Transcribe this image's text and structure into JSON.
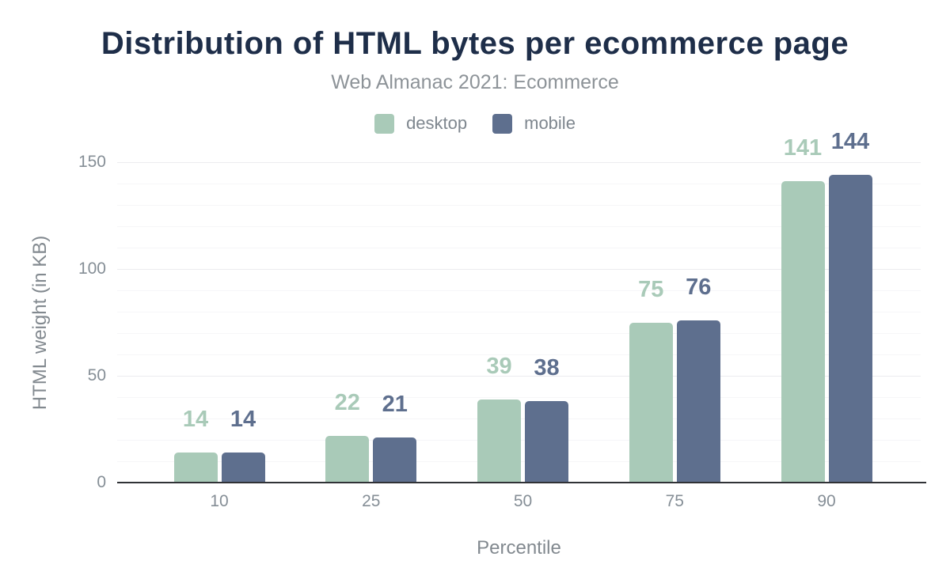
{
  "chart_data": {
    "type": "bar",
    "title": "Distribution of HTML bytes per ecommerce page",
    "subtitle": "Web Almanac 2021: Ecommerce",
    "categories": [
      "10",
      "25",
      "50",
      "75",
      "90"
    ],
    "series": [
      {
        "name": "desktop",
        "color": "#a9cab8",
        "values": [
          14,
          22,
          39,
          75,
          141
        ]
      },
      {
        "name": "mobile",
        "color": "#5e6f8e",
        "values": [
          14,
          21,
          38,
          76,
          144
        ]
      }
    ],
    "xlabel": "Percentile",
    "ylabel": "HTML weight (in KB)",
    "ylim": [
      0,
      150
    ],
    "yticks": [
      0,
      50,
      100,
      150
    ],
    "minor_grid_step": 10,
    "major_grid_step": 50,
    "grid": true,
    "legend_position": "top"
  },
  "colors": {
    "background": "#ffffff",
    "title": "#1e2e49",
    "subtitle": "#8d9398",
    "legend_text": "#7e868e",
    "tick_text": "#858e96",
    "axis_title_text": "#82898f",
    "axis_line": "#303236",
    "grid_minor": "#f6f6f8",
    "grid_major": "#ececef"
  }
}
